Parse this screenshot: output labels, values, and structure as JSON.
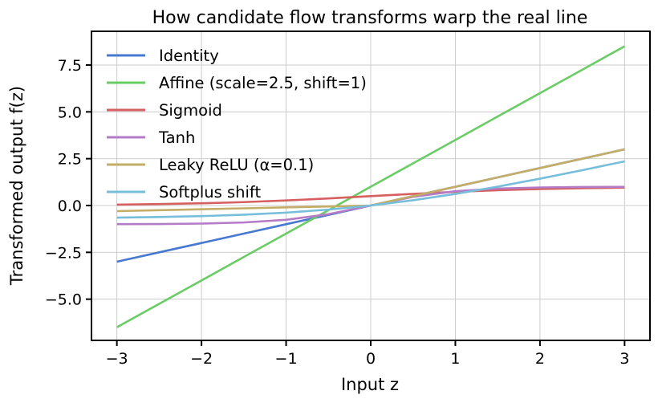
{
  "chart_data": {
    "type": "line",
    "title": "How candidate flow transforms warp the real line",
    "xlabel": "Input z",
    "ylabel": "Transformed output f(z)",
    "xlim": [
      -3.3,
      3.3
    ],
    "ylim": [
      -7.2,
      9.3
    ],
    "grid": true,
    "legend_position": "top-left",
    "xticks": [
      {
        "value": -3,
        "label": "−3"
      },
      {
        "value": -2,
        "label": "−2"
      },
      {
        "value": -1,
        "label": "−1"
      },
      {
        "value": 0,
        "label": "0"
      },
      {
        "value": 1,
        "label": "1"
      },
      {
        "value": 2,
        "label": "2"
      },
      {
        "value": 3,
        "label": "3"
      }
    ],
    "yticks": [
      {
        "value": -5,
        "label": "−5.0"
      },
      {
        "value": -2.5,
        "label": "−2.5"
      },
      {
        "value": 0,
        "label": "0.0"
      },
      {
        "value": 2.5,
        "label": "2.5"
      },
      {
        "value": 5,
        "label": "5.0"
      },
      {
        "value": 7.5,
        "label": "7.5"
      }
    ],
    "x": [
      -3,
      -2.5,
      -2,
      -1.5,
      -1,
      -0.5,
      0,
      0.5,
      1,
      1.5,
      2,
      2.5,
      3
    ],
    "series": [
      {
        "name": "Identity",
        "color": "#4878d0",
        "values": [
          -3,
          -2.5,
          -2,
          -1.5,
          -1,
          -0.5,
          0,
          0.5,
          1,
          1.5,
          2,
          2.5,
          3
        ]
      },
      {
        "name": "Affine (scale=2.5, shift=1)",
        "color": "#6acc64",
        "values": [
          -6.5,
          -5.25,
          -4,
          -2.75,
          -1.5,
          -0.25,
          1,
          2.25,
          3.5,
          4.75,
          6,
          7.25,
          8.5
        ]
      },
      {
        "name": "Sigmoid",
        "color": "#d65f5f",
        "values": [
          0.047,
          0.076,
          0.119,
          0.182,
          0.269,
          0.378,
          0.5,
          0.622,
          0.731,
          0.818,
          0.881,
          0.924,
          0.953
        ]
      },
      {
        "name": "Tanh",
        "color": "#b47cc7",
        "values": [
          -0.995,
          -0.987,
          -0.964,
          -0.905,
          -0.762,
          -0.462,
          0,
          0.462,
          0.762,
          0.905,
          0.964,
          0.987,
          0.995
        ]
      },
      {
        "name": "Leaky ReLU (α=0.1)",
        "color": "#c4ad66",
        "values": [
          -0.3,
          -0.25,
          -0.2,
          -0.15,
          -0.1,
          -0.05,
          0,
          0.5,
          1,
          1.5,
          2,
          2.5,
          3
        ]
      },
      {
        "name": "Softplus shift",
        "color": "#77bedb",
        "values": [
          -0.644,
          -0.614,
          -0.566,
          -0.492,
          -0.38,
          -0.219,
          0,
          0.281,
          0.62,
          1.008,
          1.434,
          1.886,
          2.356
        ]
      }
    ]
  }
}
